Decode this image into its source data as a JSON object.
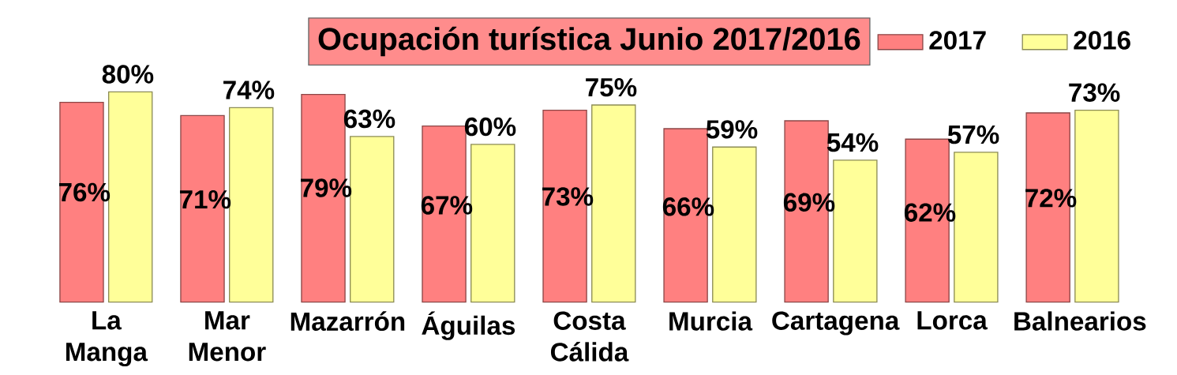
{
  "chart_data": {
    "type": "bar",
    "title": "Ocupación turística Junio 2017/2016",
    "categories": [
      "La Manga",
      "Mar Menor",
      "Mazarrón",
      "Águilas",
      "Costa Cálida",
      "Murcia",
      "Cartagena",
      "Lorca",
      "Balnearios"
    ],
    "series": [
      {
        "name": "2017",
        "color": "#ff8080",
        "values": [
          76,
          71,
          79,
          67,
          73,
          66,
          69,
          62,
          72
        ],
        "value_labels": [
          "76%",
          "71%",
          "79%",
          "67%",
          "73%",
          "66%",
          "69%",
          "62%",
          "72%"
        ]
      },
      {
        "name": "2016",
        "color": "#ffff99",
        "values": [
          80,
          74,
          63,
          60,
          75,
          59,
          54,
          57,
          73
        ],
        "value_labels": [
          "80%",
          "74%",
          "63%",
          "60%",
          "75%",
          "59%",
          "54%",
          "57%",
          "73%"
        ]
      }
    ],
    "legend": "top right"
  }
}
